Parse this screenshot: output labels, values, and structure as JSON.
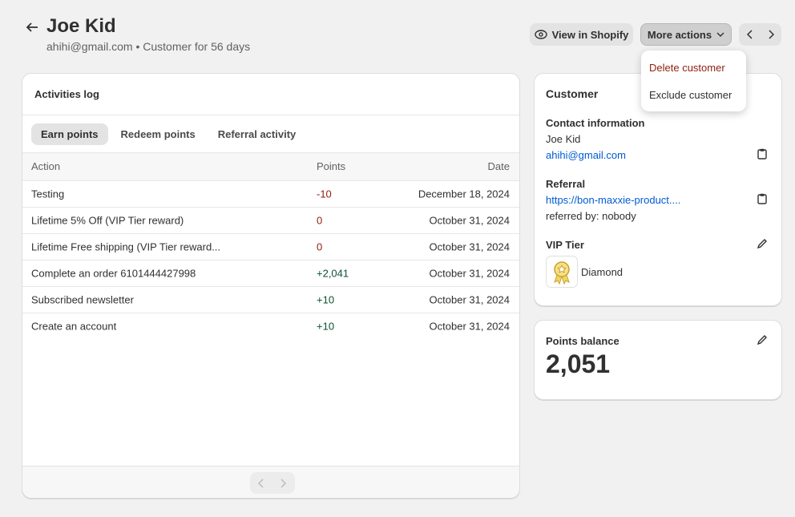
{
  "header": {
    "title": "Joe Kid",
    "subtitle": "ahihi@gmail.com • Customer for 56 days"
  },
  "actions": {
    "view": "View in Shopify",
    "more": "More actions"
  },
  "menu": [
    "Delete customer",
    "Exclude customer"
  ],
  "activities": {
    "title": "Activities log",
    "tabs": [
      "Earn points",
      "Redeem points",
      "Referral activity"
    ],
    "columns": [
      "Action",
      "Points",
      "Date"
    ],
    "rows": [
      [
        "Testing",
        "-10",
        "December 18, 2024"
      ],
      [
        "Lifetime 5% Off (VIP Tier reward)",
        "0",
        "October 31, 2024"
      ],
      [
        "Lifetime Free shipping (VIP Tier reward...",
        "0",
        "October 31, 2024"
      ],
      [
        "Complete an order 6101444427998",
        "+2,041",
        "October 31, 2024"
      ],
      [
        "Subscribed newsletter",
        "+10",
        "October 31, 2024"
      ],
      [
        "Create an account",
        "+10",
        "October 31, 2024"
      ]
    ]
  },
  "customer": {
    "title": "Customer",
    "contact": {
      "label": "Contact information",
      "name": "Joe Kid",
      "email": "ahihi@gmail.com"
    },
    "referral": {
      "label": "Referral",
      "link": "https://bon-maxxie-product....",
      "referred_by": "referred by: nobody"
    },
    "vip": {
      "label": "VIP Tier",
      "tier": "Diamond"
    }
  },
  "points_balance": {
    "label": "Points balance",
    "value": "2,051"
  }
}
